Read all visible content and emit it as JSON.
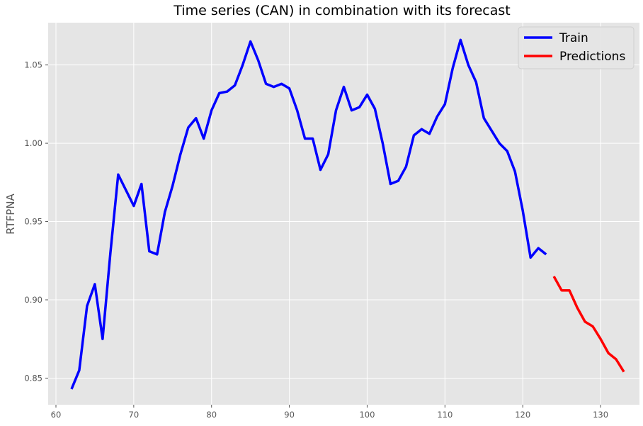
{
  "chart_data": {
    "type": "line",
    "title": "Time series (CAN) in combination with its forecast",
    "xlabel": "",
    "ylabel": "RTFPNA",
    "xlim": [
      59,
      135
    ],
    "ylim": [
      0.833,
      1.077
    ],
    "xticks": [
      60,
      70,
      80,
      90,
      100,
      110,
      120,
      130
    ],
    "yticks": [
      0.85,
      0.9,
      0.95,
      1.0,
      1.05
    ],
    "ytick_labels": [
      "0.85",
      "0.90",
      "0.95",
      "1.00",
      "1.05"
    ],
    "grid": true,
    "legend_position": "top-right",
    "colors": {
      "background": "#e5e5e5",
      "grid": "#ffffff",
      "train": "#0000ff",
      "predictions": "#ff0000"
    },
    "series": [
      {
        "name": "Train",
        "color": "#0000ff",
        "x": [
          62,
          63,
          64,
          65,
          66,
          67,
          68,
          69,
          70,
          71,
          72,
          73,
          74,
          75,
          76,
          77,
          78,
          79,
          80,
          81,
          82,
          83,
          84,
          85,
          86,
          87,
          88,
          89,
          90,
          91,
          92,
          93,
          94,
          95,
          96,
          97,
          98,
          99,
          100,
          101,
          102,
          103,
          104,
          105,
          106,
          107,
          108,
          109,
          110,
          111,
          112,
          113,
          114,
          115,
          116,
          117,
          118,
          119,
          120,
          121,
          122,
          123
        ],
        "y": [
          0.843,
          0.855,
          0.896,
          0.91,
          0.875,
          0.93,
          0.98,
          0.97,
          0.96,
          0.974,
          0.931,
          0.929,
          0.956,
          0.973,
          0.993,
          1.01,
          1.016,
          1.003,
          1.021,
          1.032,
          1.033,
          1.037,
          1.05,
          1.065,
          1.053,
          1.038,
          1.036,
          1.038,
          1.035,
          1.021,
          1.003,
          1.003,
          0.983,
          0.993,
          1.021,
          1.036,
          1.021,
          1.023,
          1.031,
          1.022,
          1.0,
          0.974,
          0.976,
          0.985,
          1.005,
          1.009,
          1.006,
          1.017,
          1.025,
          1.048,
          1.066,
          1.05,
          1.039,
          1.016,
          1.008,
          1.0,
          0.995,
          0.982,
          0.957,
          0.927,
          0.933,
          0.929
        ]
      },
      {
        "name": "Predictions",
        "color": "#ff0000",
        "x": [
          124,
          125,
          126,
          127,
          128,
          129,
          130,
          131,
          132,
          133
        ],
        "y": [
          0.915,
          0.906,
          0.906,
          0.895,
          0.886,
          0.883,
          0.875,
          0.866,
          0.862,
          0.854
        ]
      }
    ]
  }
}
